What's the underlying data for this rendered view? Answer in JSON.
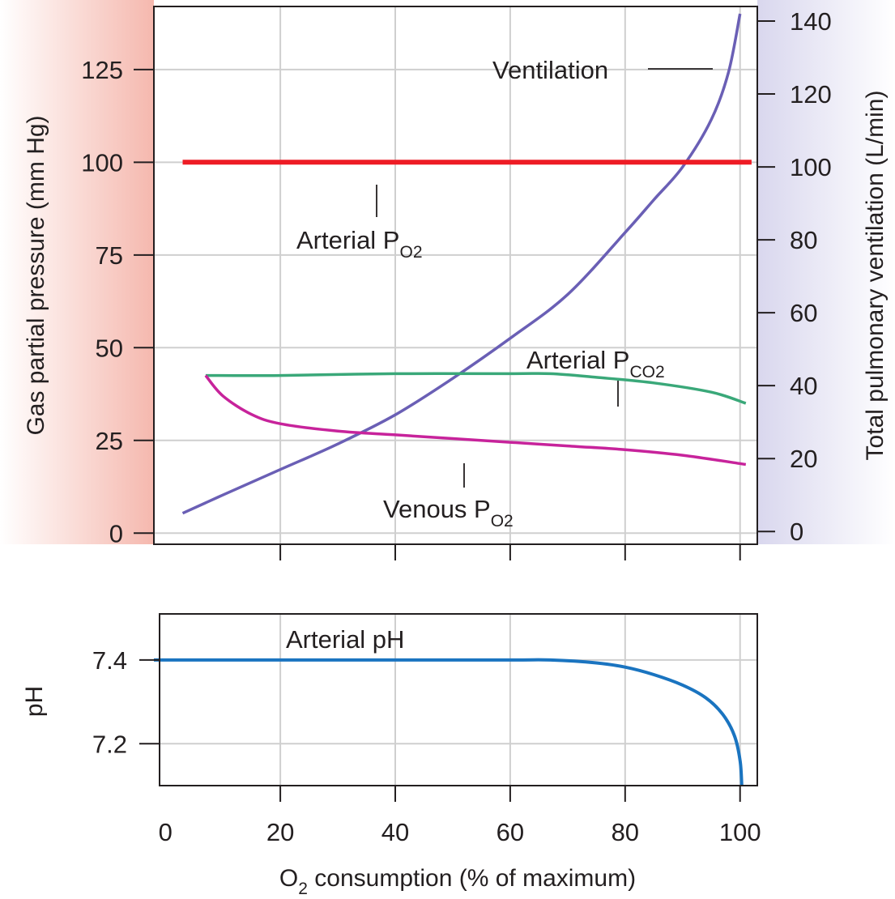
{
  "colors": {
    "left_band": "#f5b8ae",
    "right_band": "#d9d7ee",
    "grid": "#cfcfcf",
    "frame": "#231f20",
    "arterial_po2": "#ee1c25",
    "ventilation": "#6a5fb5",
    "arterial_pco2": "#3aa879",
    "venous_po2": "#c7239b",
    "arterial_ph": "#1a74c0"
  },
  "chart_data": [
    {
      "type": "line",
      "x_range": [
        -2,
        103
      ],
      "left_axis": {
        "title": "Gas partial pressure (mm Hg)",
        "ticks": [
          0,
          25,
          50,
          75,
          100,
          125
        ],
        "tick_labels": [
          "0",
          "25",
          "50",
          "75",
          "100",
          "125"
        ],
        "ylim": [
          -3,
          142
        ]
      },
      "right_axis": {
        "title": "Total pulmonary ventilation (L/min)",
        "ticks": [
          0,
          20,
          40,
          60,
          80,
          100,
          120,
          140
        ],
        "tick_labels": [
          "0",
          "20",
          "40",
          "60",
          "80",
          "100",
          "120",
          "140"
        ],
        "ylim": [
          -3.5,
          144
        ]
      },
      "x_ticks": [
        20,
        40,
        60,
        80,
        100
      ],
      "grid": true,
      "series": [
        {
          "name": "Ventilation",
          "axis": "right",
          "x": [
            3,
            10,
            20,
            30,
            40,
            50,
            60,
            70,
            80,
            85,
            90,
            95,
            98,
            100
          ],
          "y": [
            5,
            10,
            17,
            24,
            32,
            42,
            53,
            65,
            82,
            91,
            100,
            113,
            126,
            142
          ]
        },
        {
          "name": "Arterial PO2",
          "axis": "left",
          "x": [
            3,
            102
          ],
          "y": [
            100,
            100
          ]
        },
        {
          "name": "Arterial PCO2",
          "axis": "left",
          "x": [
            7,
            20,
            40,
            60,
            67,
            75,
            85,
            95,
            101
          ],
          "y": [
            42.5,
            42.5,
            43,
            43,
            43,
            42,
            40.5,
            38,
            35
          ]
        },
        {
          "name": "Venous PO2",
          "axis": "left",
          "x": [
            7,
            10,
            15,
            20,
            30,
            40,
            50,
            60,
            70,
            80,
            90,
            101
          ],
          "y": [
            42.5,
            37,
            32,
            29.5,
            27.5,
            26.5,
            25.5,
            24.5,
            23.5,
            22.5,
            21,
            18.5
          ]
        }
      ],
      "labels": [
        {
          "series": "Ventilation",
          "text": "Ventilation",
          "subscript": ""
        },
        {
          "series": "Arterial PO2",
          "text": "Arterial P",
          "subscript": "O2"
        },
        {
          "series": "Arterial PCO2",
          "text": "Arterial P",
          "subscript": "CO2"
        },
        {
          "series": "Venous PO2",
          "text": "Venous P",
          "subscript": "O2"
        }
      ]
    },
    {
      "type": "line",
      "x_range": [
        -2,
        103
      ],
      "y_axis": {
        "title": "pH",
        "ticks": [
          7.2,
          7.4
        ],
        "tick_labels": [
          "7.2",
          "7.4"
        ],
        "ylim": [
          7.1,
          7.51
        ]
      },
      "x_axis": {
        "title": "O2 consumption (% of maximum)",
        "title_text": "O",
        "title_sub": "2",
        "title_rest": " consumption (% of maximum)",
        "ticks": [
          0,
          20,
          40,
          60,
          80,
          100
        ],
        "tick_labels": [
          "0",
          "20",
          "40",
          "60",
          "80",
          "100"
        ]
      },
      "grid": true,
      "series": [
        {
          "name": "Arterial pH",
          "x": [
            -2,
            20,
            40,
            60,
            67,
            75,
            80,
            85,
            90,
            94,
            97,
            99,
            100,
            100.3
          ],
          "y": [
            7.4,
            7.4,
            7.4,
            7.4,
            7.4,
            7.393,
            7.383,
            7.365,
            7.34,
            7.31,
            7.27,
            7.22,
            7.16,
            7.1
          ]
        }
      ],
      "labels": [
        {
          "series": "Arterial pH",
          "text": "Arterial pH",
          "subscript": ""
        }
      ]
    }
  ]
}
